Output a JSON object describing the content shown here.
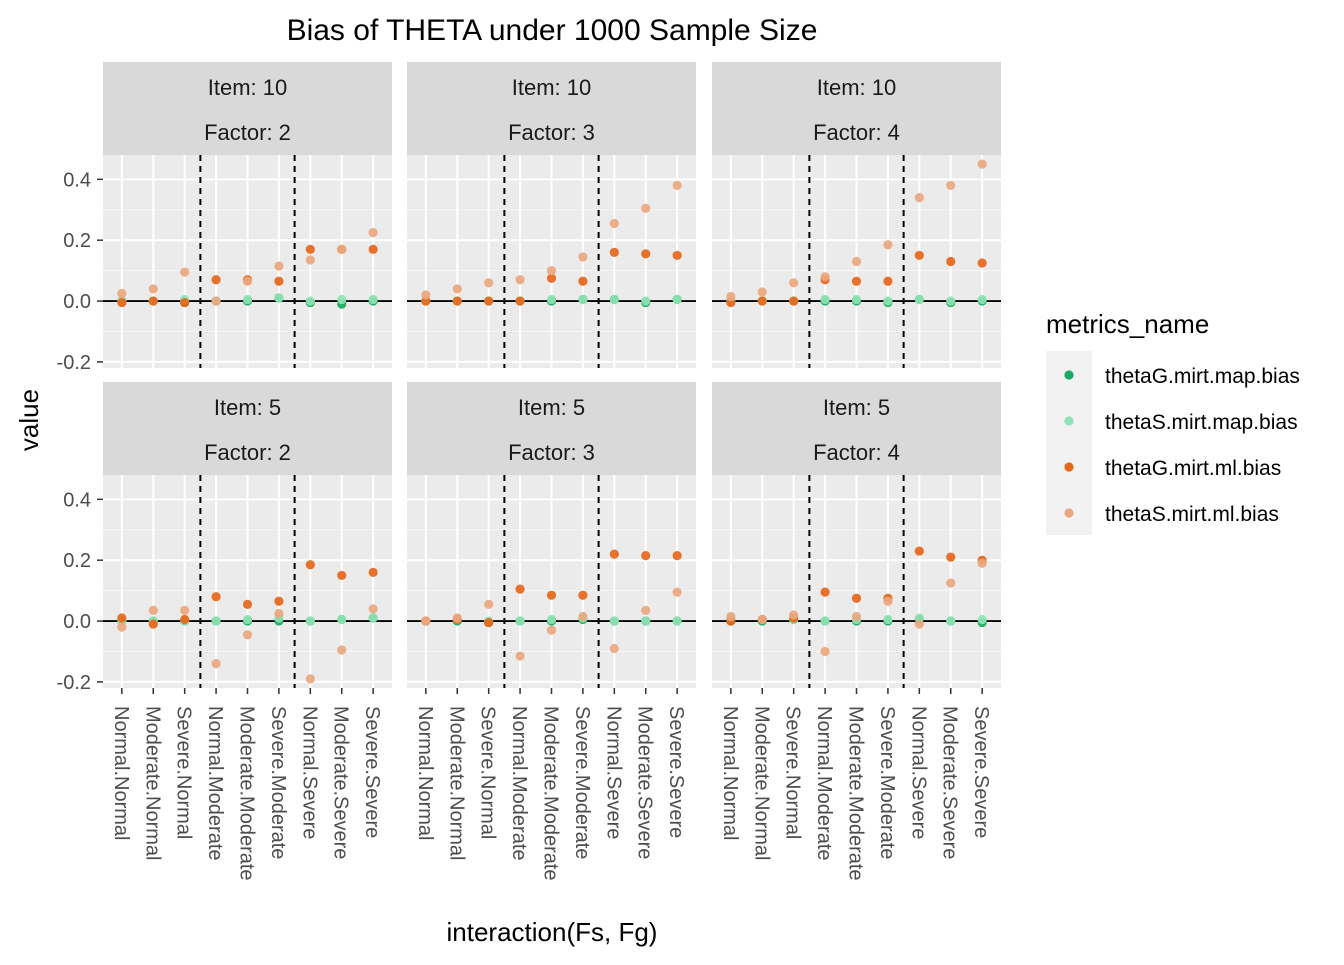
{
  "chart_data": {
    "type": "scatter",
    "title": "Bias of THETA under 1000 Sample Size",
    "xlabel": "interaction(Fs, Fg)",
    "ylabel": "value",
    "ylim": [
      -0.22,
      0.48
    ],
    "yticks": [
      -0.2,
      0.0,
      0.2,
      0.4
    ],
    "ytick_labels": [
      "-0.2",
      "0.0",
      "0.2",
      "0.4"
    ],
    "categories": [
      "Normal.Normal",
      "Moderate.Normal",
      "Severe.Normal",
      "Normal.Moderate",
      "Moderate.Moderate",
      "Severe.Moderate",
      "Normal.Severe",
      "Moderate.Severe",
      "Severe.Severe"
    ],
    "reference_line_y": 0,
    "vertical_dashed_lines_between": [
      3,
      6
    ],
    "legend": {
      "title": "metrics_name",
      "position": "right",
      "entries": [
        {
          "name": "thetaG.mirt.map.bias",
          "color": "#1aa95e"
        },
        {
          "name": "thetaS.mirt.map.bias",
          "color": "#8fe3b4"
        },
        {
          "name": "thetaG.mirt.ml.bias",
          "color": "#e6661a"
        },
        {
          "name": "thetaS.mirt.ml.bias",
          "color": "#eaa77f"
        }
      ]
    },
    "panels": [
      {
        "strip_top": "Item: 10",
        "strip_bottom": "Factor: 2",
        "series": [
          {
            "name": "thetaG.mirt.map.bias",
            "values": [
              0.0,
              0.0,
              -0.005,
              0.0,
              0.0,
              0.01,
              -0.005,
              -0.01,
              0.0
            ]
          },
          {
            "name": "thetaS.mirt.map.bias",
            "values": [
              0.0,
              0.0,
              0.005,
              0.0,
              0.005,
              0.01,
              0.0,
              0.005,
              0.005
            ]
          },
          {
            "name": "thetaG.mirt.ml.bias",
            "values": [
              -0.005,
              0.0,
              -0.005,
              0.07,
              0.07,
              0.065,
              0.17,
              0.17,
              0.17
            ]
          },
          {
            "name": "thetaS.mirt.ml.bias",
            "values": [
              0.025,
              0.04,
              0.095,
              0.0,
              0.065,
              0.115,
              0.135,
              0.17,
              0.225
            ]
          }
        ]
      },
      {
        "strip_top": "Item: 10",
        "strip_bottom": "Factor: 3",
        "series": [
          {
            "name": "thetaG.mirt.map.bias",
            "values": [
              0.0,
              0.0,
              0.0,
              0.0,
              0.0,
              0.005,
              0.005,
              -0.005,
              0.005
            ]
          },
          {
            "name": "thetaS.mirt.map.bias",
            "values": [
              0.0,
              0.0,
              0.0,
              0.0,
              0.005,
              0.005,
              0.005,
              0.0,
              0.005
            ]
          },
          {
            "name": "thetaG.mirt.ml.bias",
            "values": [
              0.0,
              0.0,
              0.0,
              0.0,
              0.075,
              0.065,
              0.16,
              0.155,
              0.15
            ]
          },
          {
            "name": "thetaS.mirt.ml.bias",
            "values": [
              0.02,
              0.04,
              0.06,
              0.07,
              0.1,
              0.145,
              0.255,
              0.305,
              0.38
            ]
          }
        ]
      },
      {
        "strip_top": "Item: 10",
        "strip_bottom": "Factor: 4",
        "series": [
          {
            "name": "thetaG.mirt.map.bias",
            "values": [
              0.0,
              0.0,
              0.0,
              0.0,
              0.0,
              -0.005,
              0.005,
              -0.005,
              0.0
            ]
          },
          {
            "name": "thetaS.mirt.map.bias",
            "values": [
              0.0,
              0.0,
              0.0,
              0.005,
              0.005,
              0.0,
              0.005,
              0.0,
              0.005
            ]
          },
          {
            "name": "thetaG.mirt.ml.bias",
            "values": [
              -0.005,
              0.0,
              0.0,
              0.07,
              0.065,
              0.065,
              0.15,
              0.13,
              0.125
            ]
          },
          {
            "name": "thetaS.mirt.ml.bias",
            "values": [
              0.015,
              0.03,
              0.06,
              0.08,
              0.13,
              0.185,
              0.34,
              0.38,
              0.45
            ]
          }
        ]
      },
      {
        "strip_top": "Item: 5",
        "strip_bottom": "Factor: 2",
        "series": [
          {
            "name": "thetaG.mirt.map.bias",
            "values": [
              0.0,
              0.0,
              0.0,
              0.0,
              0.0,
              0.0,
              0.0,
              0.005,
              0.01
            ]
          },
          {
            "name": "thetaS.mirt.map.bias",
            "values": [
              0.0,
              0.0,
              0.0,
              0.0,
              0.005,
              0.01,
              0.0,
              0.005,
              0.01
            ]
          },
          {
            "name": "thetaG.mirt.ml.bias",
            "values": [
              0.01,
              -0.01,
              0.005,
              0.08,
              0.055,
              0.065,
              0.185,
              0.15,
              0.16
            ]
          },
          {
            "name": "thetaS.mirt.ml.bias",
            "values": [
              -0.02,
              0.035,
              0.035,
              -0.14,
              -0.045,
              0.025,
              -0.19,
              -0.095,
              0.04
            ]
          }
        ]
      },
      {
        "strip_top": "Item: 5",
        "strip_bottom": "Factor: 3",
        "series": [
          {
            "name": "thetaG.mirt.map.bias",
            "values": [
              0.0,
              0.0,
              -0.005,
              0.0,
              0.0,
              0.005,
              0.0,
              0.0,
              0.0
            ]
          },
          {
            "name": "thetaS.mirt.map.bias",
            "values": [
              0.0,
              0.005,
              0.0,
              0.0,
              0.005,
              0.01,
              0.0,
              0.0,
              0.0
            ]
          },
          {
            "name": "thetaG.mirt.ml.bias",
            "values": [
              0.0,
              0.005,
              -0.005,
              0.105,
              0.085,
              0.085,
              0.22,
              0.215,
              0.215
            ]
          },
          {
            "name": "thetaS.mirt.ml.bias",
            "values": [
              0.0,
              0.01,
              0.055,
              -0.115,
              -0.03,
              0.015,
              -0.09,
              0.035,
              0.095
            ]
          }
        ]
      },
      {
        "strip_top": "Item: 5",
        "strip_bottom": "Factor: 4",
        "series": [
          {
            "name": "thetaG.mirt.map.bias",
            "values": [
              0.0,
              0.0,
              0.005,
              0.0,
              0.0,
              0.0,
              0.005,
              0.0,
              -0.005
            ]
          },
          {
            "name": "thetaS.mirt.map.bias",
            "values": [
              0.01,
              0.005,
              0.005,
              0.0,
              0.005,
              0.005,
              0.01,
              0.0,
              0.005
            ]
          },
          {
            "name": "thetaG.mirt.ml.bias",
            "values": [
              0.0,
              0.005,
              0.01,
              0.095,
              0.075,
              0.075,
              0.23,
              0.21,
              0.2
            ]
          },
          {
            "name": "thetaS.mirt.ml.bias",
            "values": [
              0.015,
              0.005,
              0.02,
              -0.1,
              0.015,
              0.065,
              -0.01,
              0.125,
              0.19
            ]
          }
        ]
      }
    ]
  }
}
